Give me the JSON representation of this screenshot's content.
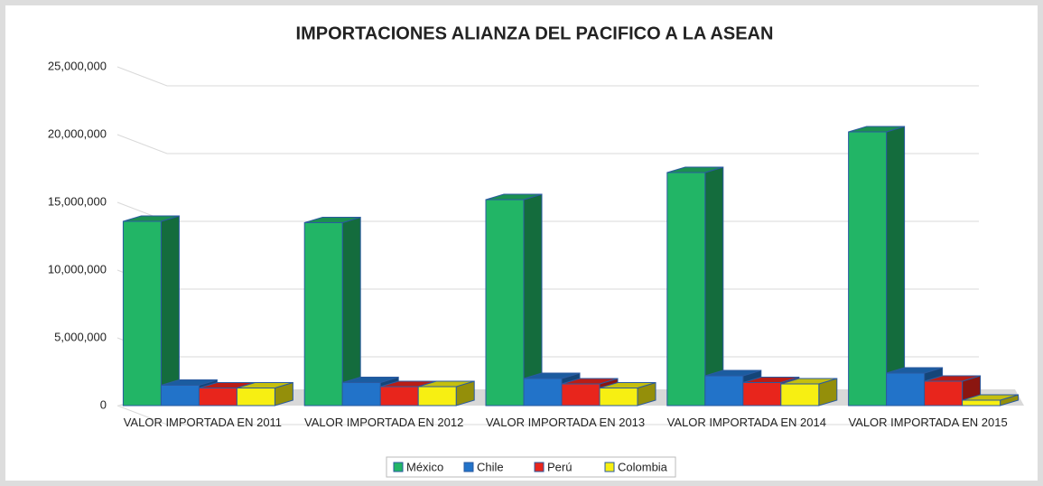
{
  "chart_data": {
    "type": "bar3d",
    "title": "IMPORTACIONES ALIANZA DEL PACIFICO A LA ASEAN",
    "categories": [
      "VALOR IMPORTADA EN 2011",
      "VALOR IMPORTADA EN 2012",
      "VALOR IMPORTADA EN 2013",
      "VALOR IMPORTADA EN 2014",
      "VALOR IMPORTADA EN 2015"
    ],
    "series": [
      {
        "name": "México",
        "color": "#22b566",
        "values": [
          13600000,
          13500000,
          15200000,
          17200000,
          20200000
        ]
      },
      {
        "name": "Chile",
        "color": "#2273c9",
        "values": [
          1500000,
          1700000,
          2000000,
          2200000,
          2400000
        ]
      },
      {
        "name": "Perú",
        "color": "#e8251c",
        "values": [
          1300000,
          1400000,
          1600000,
          1700000,
          1800000
        ]
      },
      {
        "name": "Colombia",
        "color": "#f7ef12",
        "values": [
          1300000,
          1400000,
          1300000,
          1600000,
          400000
        ]
      }
    ],
    "ylim": [
      0,
      25000000
    ],
    "yticks": [
      0,
      {
        "value": 5000000,
        "label": "5,000,000"
      },
      {
        "value": 10000000,
        "label": "10,000,000"
      },
      {
        "value": 15000000,
        "label": "15,000,000"
      },
      {
        "value": 20000000,
        "label": "20,000,000"
      },
      {
        "value": 25000000,
        "label": "25,000,000"
      }
    ],
    "grid": true,
    "legend": "bottom"
  }
}
